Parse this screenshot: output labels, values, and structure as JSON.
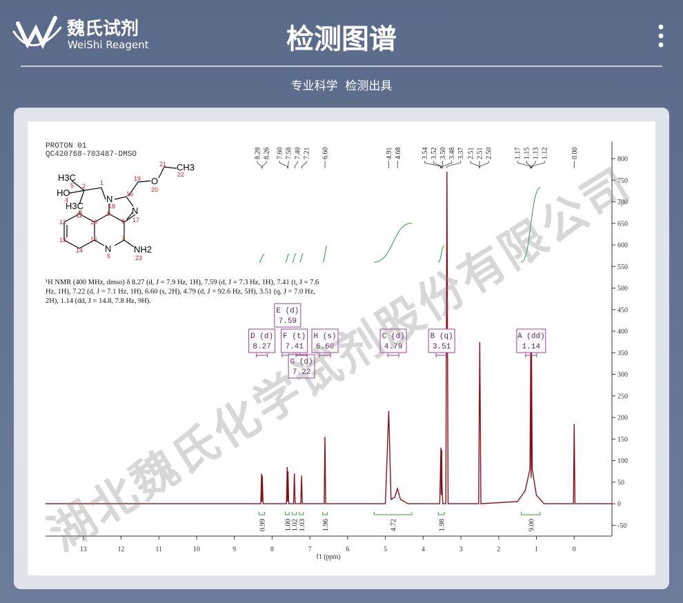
{
  "header": {
    "logo_name": "魏氏试剂",
    "logo_subtitle": "WeiShi Reagent",
    "title": "检测图谱",
    "subtitle": "专业科学  检测出具"
  },
  "watermark": "湖北魏氏化学试剂股份有限公司",
  "spectrum_header": [
    "PROTON 01",
    "QC420768-703487-DMSO"
  ],
  "structure": {
    "labels": [
      "H3C",
      "HO",
      "H3C",
      "N",
      "N",
      "O",
      "CH3",
      "N",
      "NH2",
      "1",
      "2",
      "3",
      "4",
      "5",
      "6",
      "7",
      "8",
      "9",
      "10",
      "11",
      "12",
      "13",
      "14",
      "15",
      "16",
      "17",
      "18",
      "19",
      "20",
      "21",
      "22",
      "23"
    ]
  },
  "nmr_description": [
    "¹H NMR (400 MHz, dmso) δ 8.27 (d, J = 7.9 Hz, 1H), 7.59 (d, J = 7.3 Hz, 1H), 7.41 (t, J = 7.6",
    "Hz, 1H), 7.22 (d, J = 7.1 Hz, 1H), 6.60 (s, 2H), 4.79 (d, J = 92.6 Hz, 5H), 3.51 (q, J = 7.0 Hz,",
    "2H), 1.14 (dd, J = 14.8, 7.8 Hz, 9H)."
  ],
  "chart_data": {
    "type": "line",
    "x_label": "f1 (ppm)",
    "x": [
      14,
      8.3,
      8.28,
      8.27,
      8.26,
      8.24,
      7.62,
      7.6,
      7.59,
      7.58,
      7.56,
      7.43,
      7.41,
      7.39,
      7.24,
      7.22,
      7.2,
      6.62,
      6.6,
      6.58,
      5.0,
      4.91,
      4.85,
      4.75,
      4.68,
      4.6,
      4.4,
      3.56,
      3.53,
      3.52,
      3.51,
      3.5,
      3.48,
      3.4,
      3.37,
      3.34,
      2.53,
      2.5,
      2.47,
      1.5,
      1.3,
      1.17,
      1.15,
      1.14,
      1.13,
      1.11,
      1.0,
      0.8,
      0.02,
      0.0,
      -0.02,
      -1.0
    ],
    "series": [
      {
        "color": "#8a0d1a",
        "values": [
          0,
          0,
          70,
          5,
          65,
          0,
          0,
          85,
          5,
          75,
          0,
          0,
          70,
          0,
          0,
          65,
          0,
          0,
          155,
          0,
          0,
          215,
          10,
          15,
          35,
          10,
          0,
          0,
          130,
          20,
          125,
          45,
          0,
          0,
          770,
          0,
          0,
          375,
          0,
          5,
          30,
          80,
          350,
          60,
          350,
          80,
          20,
          0,
          0,
          185,
          0,
          0
        ]
      }
    ],
    "xlim": [
      14,
      -1
    ],
    "xticks": [
      13,
      12,
      11,
      10,
      9,
      8,
      7,
      6,
      5,
      4,
      3,
      2,
      1,
      0
    ],
    "ylim": [
      -75,
      840
    ],
    "yticks": [
      -50,
      0,
      50,
      100,
      150,
      200,
      250,
      300,
      350,
      400,
      450,
      500,
      550,
      600,
      650,
      700,
      750,
      800
    ],
    "peak_labels": {
      "values": [
        8.28,
        8.26,
        7.6,
        7.58,
        7.4,
        7.21,
        6.6,
        4.91,
        4.68,
        3.54,
        3.52,
        3.5,
        3.48,
        3.37,
        2.51,
        2.51,
        2.5,
        1.17,
        1.15,
        1.13,
        1.12,
        0
      ],
      "value_labels": [
        "8.28",
        "8.26",
        "7.60",
        "7.58",
        "7.40",
        "7.21",
        "6.60",
        "4.91",
        "4.68",
        "3.54",
        "3.52",
        "3.50",
        "3.48",
        "3.37",
        "2.51",
        "2.51",
        "2.50",
        "1.17",
        "1.15",
        "1.13",
        "1.12",
        "0.00"
      ]
    },
    "multiplets": {
      "names": [
        "D (d)",
        "E (d)",
        "F (t)",
        "G (d)",
        "H (s)",
        "C (d)",
        "B (q)",
        "A (dd)"
      ],
      "values": [
        8.27,
        7.59,
        7.41,
        7.22,
        6.6,
        4.79,
        3.51,
        1.14
      ],
      "value_labels": [
        "8.27",
        "7.59",
        "7.41",
        "7.22",
        "6.60",
        "4.79",
        "3.51",
        "1.14"
      ]
    },
    "integrals": {
      "from": [
        8.35,
        7.65,
        7.47,
        7.28,
        6.66,
        5.3,
        3.6,
        1.4
      ],
      "to": [
        8.2,
        7.55,
        7.36,
        7.17,
        6.54,
        4.3,
        3.44,
        0.9
      ],
      "values": [
        0.99,
        1,
        1.02,
        1.03,
        1.96,
        4.72,
        1.98,
        9
      ],
      "value_labels": [
        "0.99",
        "1.00",
        "1.02",
        "1.03",
        "1.96",
        "4.72",
        "1.98",
        "9.00"
      ]
    }
  }
}
